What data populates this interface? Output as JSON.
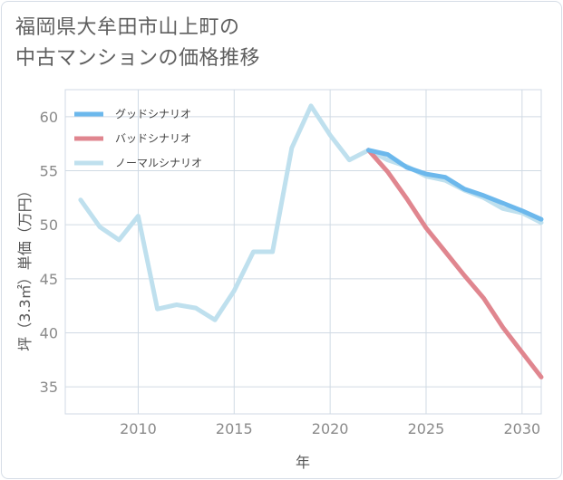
{
  "title_lines": [
    "福岡県大牟田市山上町の",
    "中古マンションの価格推移"
  ],
  "chart_data": {
    "type": "line",
    "title": "福岡県大牟田市山上町の中古マンションの価格推移",
    "xlabel": "年",
    "ylabel": "坪（3.3㎡）単価（万円）",
    "xlim": [
      2006.2,
      2031.0
    ],
    "ylim": [
      32.5,
      62.5
    ],
    "grid": true,
    "legend_position": "top-left",
    "x_ticks": [
      2010,
      2015,
      2020,
      2025,
      2030
    ],
    "y_ticks": [
      35,
      40,
      45,
      50,
      55,
      60
    ],
    "series": [
      {
        "name": "グッドシナリオ",
        "color": "#6cb8ec",
        "x": [
          2022,
          2023,
          2024,
          2025,
          2026,
          2027,
          2028,
          2029,
          2030,
          2031
        ],
        "values": [
          56.9,
          56.5,
          55.3,
          54.7,
          54.4,
          53.3,
          52.7,
          52.0,
          51.3,
          50.5
        ]
      },
      {
        "name": "バッドシナリオ",
        "color": "#e0868f",
        "x": [
          2022,
          2023,
          2024,
          2025,
          2026,
          2027,
          2028,
          2029,
          2030,
          2031
        ],
        "values": [
          56.9,
          54.9,
          52.4,
          49.7,
          47.5,
          45.3,
          43.2,
          40.5,
          38.2,
          35.9
        ]
      },
      {
        "name": "ノーマルシナリオ",
        "color": "#bfe0ee",
        "x": [
          2007,
          2008,
          2009,
          2010,
          2011,
          2012,
          2013,
          2014,
          2015,
          2016,
          2017,
          2018,
          2019,
          2020,
          2021,
          2022,
          2023,
          2024,
          2025,
          2026,
          2027,
          2028,
          2029,
          2030,
          2031
        ],
        "values": [
          52.3,
          49.8,
          48.6,
          50.8,
          42.2,
          42.6,
          42.3,
          41.2,
          43.9,
          47.5,
          47.5,
          57.1,
          61.0,
          58.3,
          56.0,
          56.9,
          56.0,
          55.4,
          54.5,
          54.1,
          53.2,
          52.5,
          51.5,
          51.1,
          50.2
        ]
      }
    ]
  }
}
